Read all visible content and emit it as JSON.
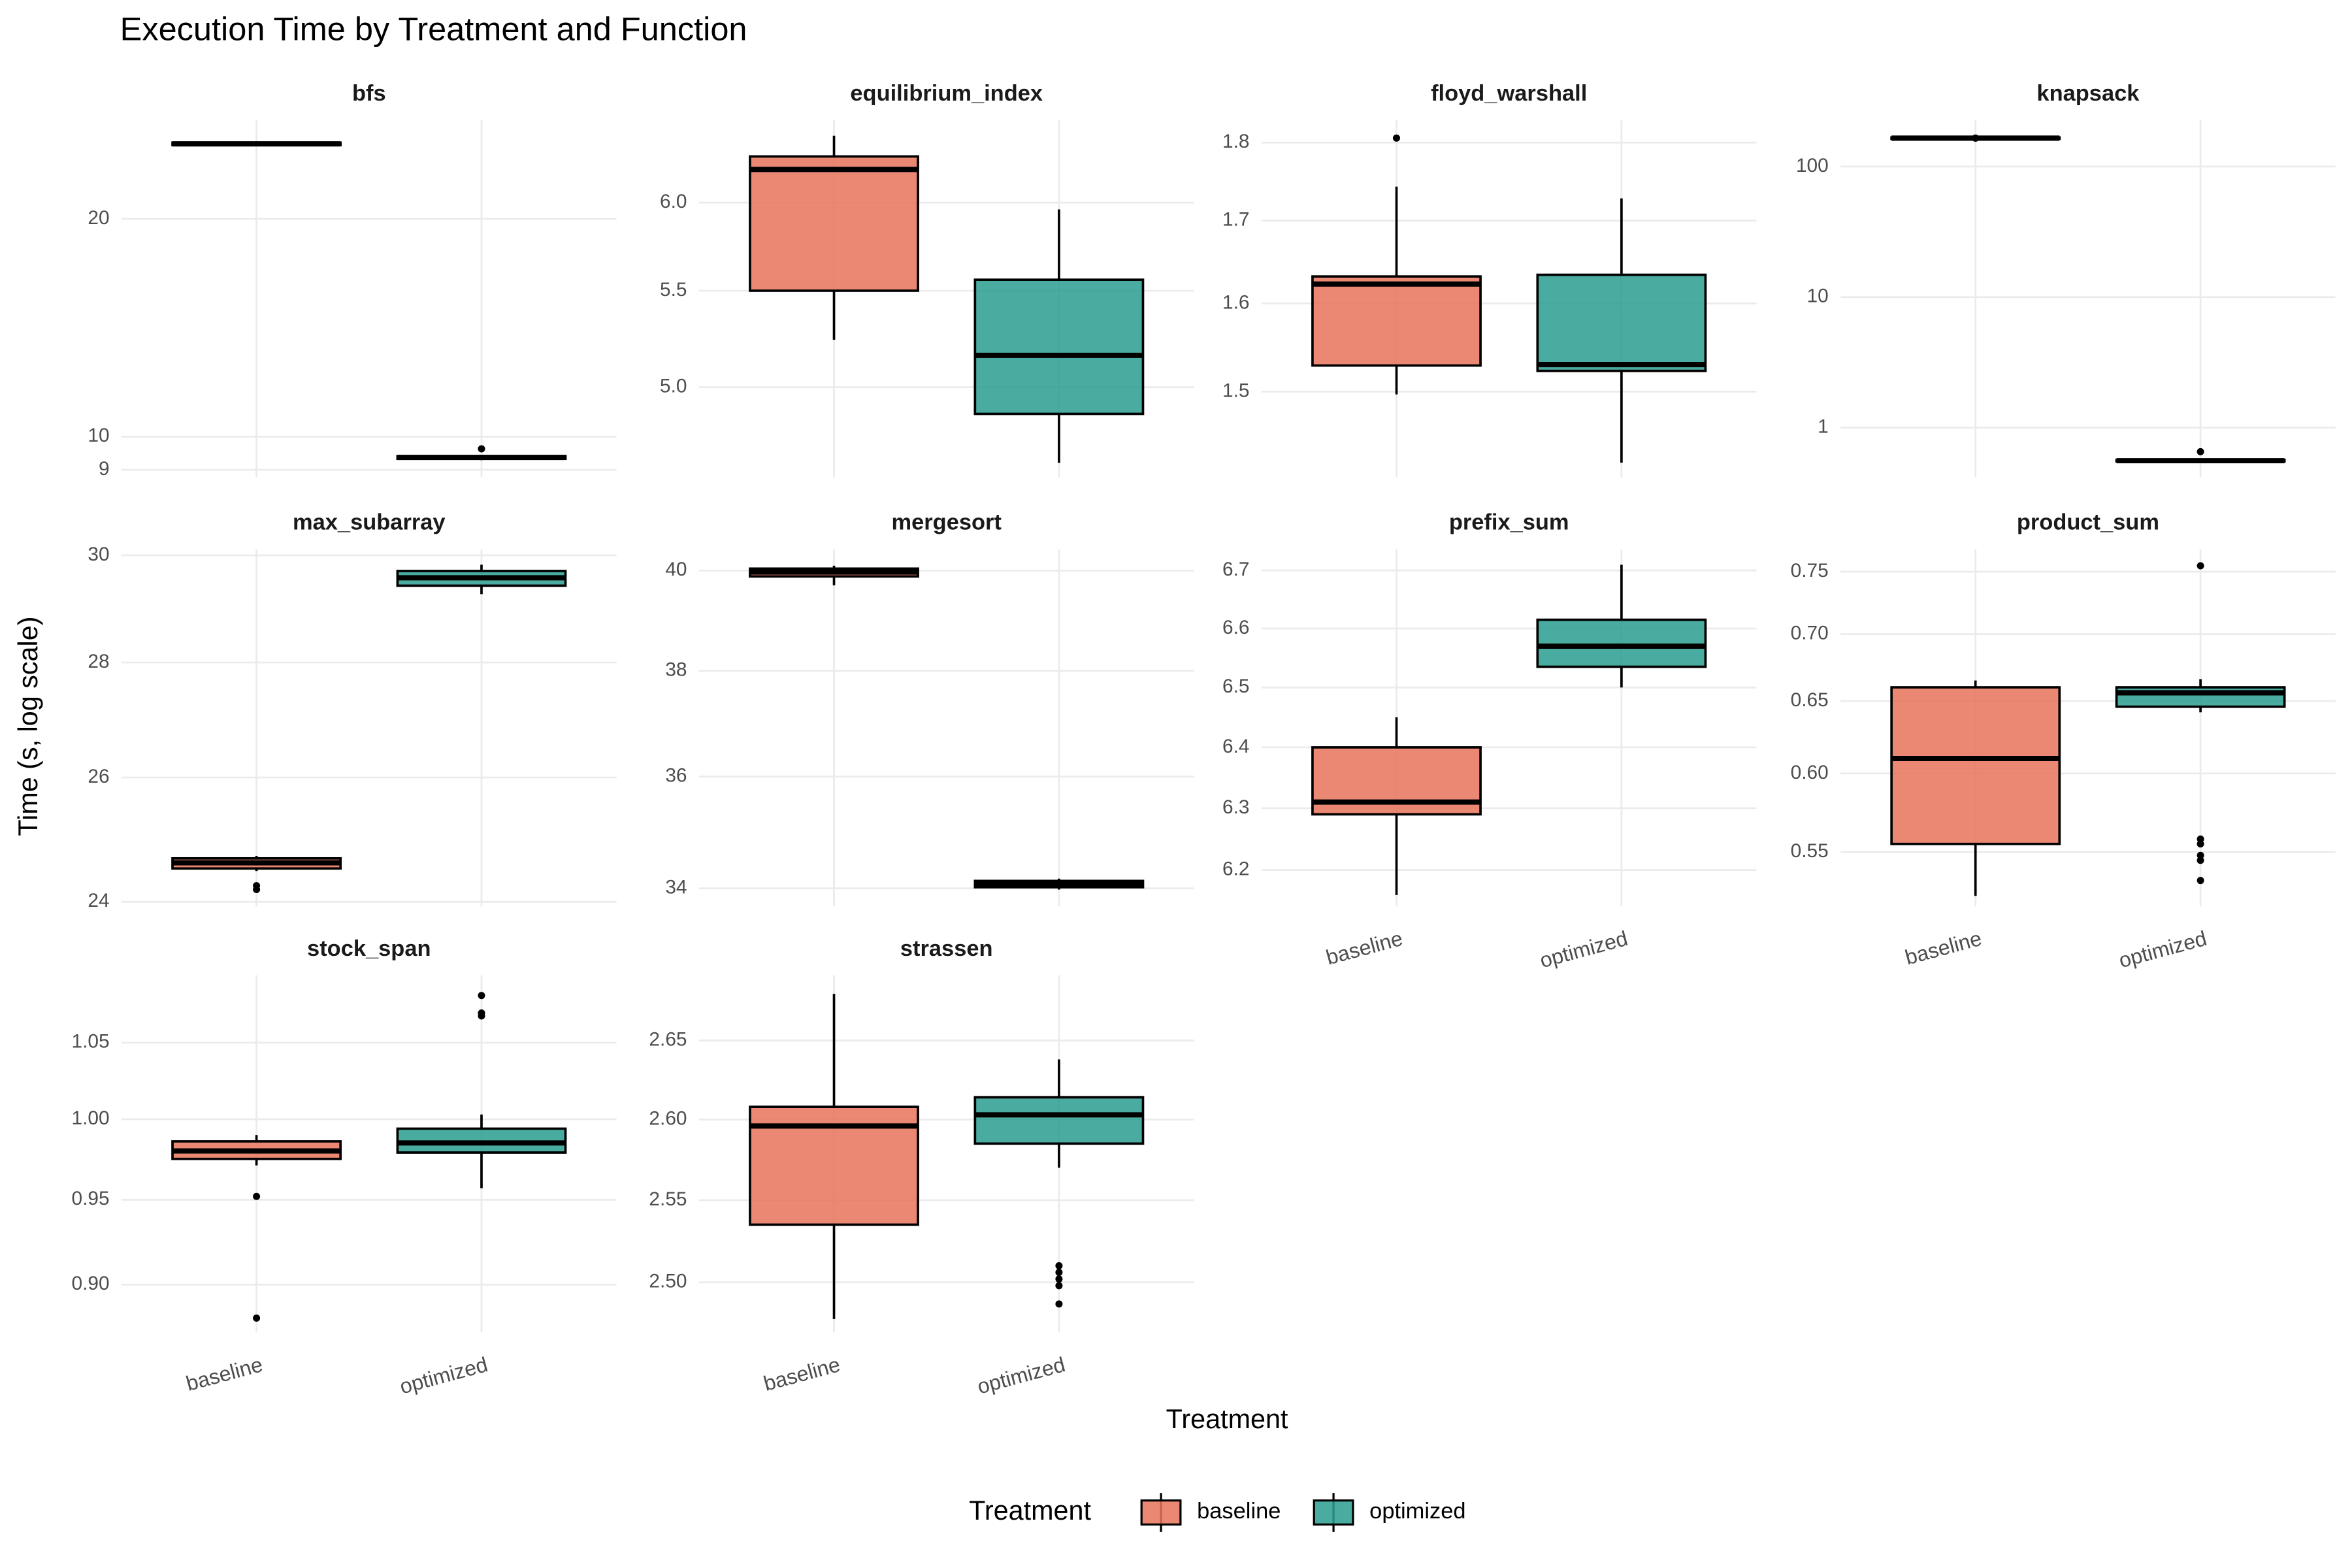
{
  "chart_data": {
    "type": "box",
    "title": "Execution Time by Treatment and Function",
    "x_label": "Treatment",
    "y_label": "Time (s, log scale)",
    "legend_title": "Treatment",
    "log_y": true,
    "grid": true,
    "categories": [
      "baseline",
      "optimized"
    ],
    "series": [
      {
        "name": "baseline",
        "color": "#E8735A"
      },
      {
        "name": "optimized",
        "color": "#2A9D8F"
      }
    ],
    "panels": [
      {
        "title": "bfs",
        "ylim": [
          8.79,
          27.4
        ],
        "yticks": [
          9,
          10,
          20
        ],
        "boxes": [
          {
            "low": 25.2,
            "q1": 25.3,
            "median": 25.4,
            "q3": 25.5,
            "high": 25.6,
            "outliers": []
          },
          {
            "low": 9.28,
            "q1": 9.32,
            "median": 9.36,
            "q3": 9.4,
            "high": 9.44,
            "outliers": [
              9.62
            ]
          }
        ]
      },
      {
        "title": "equilibrium_index",
        "ylim": [
          4.575,
          6.51
        ],
        "yticks": [
          {
            "value": 5,
            "label": "5.0"
          },
          5.5,
          {
            "value": 6,
            "label": "6.0"
          }
        ],
        "boxes": [
          {
            "low": 5.24,
            "q1": 5.5,
            "median": 6.2,
            "q3": 6.28,
            "high": 6.41,
            "outliers": []
          },
          {
            "low": 4.64,
            "q1": 4.87,
            "median": 5.16,
            "q3": 5.56,
            "high": 5.96,
            "outliers": []
          }
        ]
      },
      {
        "title": "floyd_warshall",
        "ylim": [
          1.409,
          1.83
        ],
        "yticks": [
          1.5,
          1.6,
          1.7,
          1.8
        ],
        "boxes": [
          {
            "low": 1.497,
            "q1": 1.529,
            "median": 1.623,
            "q3": 1.632,
            "high": 1.743,
            "outliers": [
              1.806
            ]
          },
          {
            "low": 1.424,
            "q1": 1.523,
            "median": 1.53,
            "q3": 1.634,
            "high": 1.728,
            "outliers": []
          }
        ]
      },
      {
        "title": "knapsack",
        "ylim": [
          0.418,
          227
        ],
        "yticks": [
          1,
          10,
          100
        ],
        "boxes": [
          {
            "low": 161,
            "q1": 163,
            "median": 165,
            "q3": 167,
            "high": 169,
            "outliers": [
              165
            ]
          },
          {
            "low": 0.545,
            "q1": 0.552,
            "median": 0.559,
            "q3": 0.566,
            "high": 0.573,
            "outliers": [
              0.655
            ]
          }
        ]
      },
      {
        "title": "max_subarray",
        "ylim": [
          23.93,
          30.12
        ],
        "yticks": [
          24,
          26,
          28,
          30
        ],
        "boxes": [
          {
            "low": 24.48,
            "q1": 24.52,
            "median": 24.61,
            "q3": 24.68,
            "high": 24.72,
            "outliers": [
              24.25,
              24.19
            ]
          },
          {
            "low": 29.26,
            "q1": 29.42,
            "median": 29.57,
            "q3": 29.7,
            "high": 29.82,
            "outliers": []
          }
        ]
      },
      {
        "title": "mergesort",
        "ylim": [
          33.69,
          40.44
        ],
        "yticks": [
          34,
          36,
          38,
          40
        ],
        "boxes": [
          {
            "low": 39.7,
            "q1": 39.88,
            "median": 39.97,
            "q3": 40.04,
            "high": 40.1,
            "outliers": []
          },
          {
            "low": 33.98,
            "q1": 34.02,
            "median": 34.08,
            "q3": 34.13,
            "high": 34.17,
            "outliers": []
          }
        ]
      },
      {
        "title": "prefix_sum",
        "ylim": [
          6.142,
          6.737
        ],
        "yticks": [
          6.2,
          6.3,
          6.4,
          6.5,
          6.6,
          6.7
        ],
        "boxes": [
          {
            "low": 6.16,
            "q1": 6.29,
            "median": 6.31,
            "q3": 6.4,
            "high": 6.45,
            "outliers": []
          },
          {
            "low": 6.5,
            "q1": 6.535,
            "median": 6.57,
            "q3": 6.615,
            "high": 6.71,
            "outliers": []
          }
        ]
      },
      {
        "title": "product_sum",
        "ylim": [
          0.518,
          0.769
        ],
        "yticks": [
          0.55,
          {
            "value": 0.6,
            "label": "0.60"
          },
          0.65,
          {
            "value": 0.7,
            "label": "0.70"
          },
          0.75
        ],
        "boxes": [
          {
            "low": 0.524,
            "q1": 0.555,
            "median": 0.61,
            "q3": 0.66,
            "high": 0.665,
            "outliers": []
          },
          {
            "low": 0.642,
            "q1": 0.646,
            "median": 0.656,
            "q3": 0.66,
            "high": 0.666,
            "outliers": [
              0.755,
              0.558,
              0.555,
              0.548,
              0.545,
              0.533
            ]
          }
        ]
      },
      {
        "title": "stock_span",
        "ylim": [
          0.873,
          1.096
        ],
        "yticks": [
          {
            "value": 0.9,
            "label": "0.90"
          },
          0.95,
          {
            "value": 1,
            "label": "1.00"
          },
          1.05
        ],
        "boxes": [
          {
            "low": 0.971,
            "q1": 0.975,
            "median": 0.98,
            "q3": 0.986,
            "high": 0.99,
            "outliers": [
              0.952,
              0.881
            ]
          },
          {
            "low": 0.957,
            "q1": 0.979,
            "median": 0.985,
            "q3": 0.994,
            "high": 1.003,
            "outliers": [
              1.082,
              1.07,
              1.068
            ]
          }
        ]
      },
      {
        "title": "strassen",
        "ylim": [
          2.47,
          2.692
        ],
        "yticks": [
          {
            "value": 2.5,
            "label": "2.50"
          },
          2.55,
          {
            "value": 2.6,
            "label": "2.60"
          },
          2.65
        ],
        "boxes": [
          {
            "low": 2.478,
            "q1": 2.535,
            "median": 2.596,
            "q3": 2.608,
            "high": 2.68,
            "outliers": []
          },
          {
            "low": 2.57,
            "q1": 2.585,
            "median": 2.603,
            "q3": 2.614,
            "high": 2.638,
            "outliers": [
              2.51,
              2.506,
              2.502,
              2.498,
              2.487
            ]
          }
        ]
      }
    ]
  }
}
